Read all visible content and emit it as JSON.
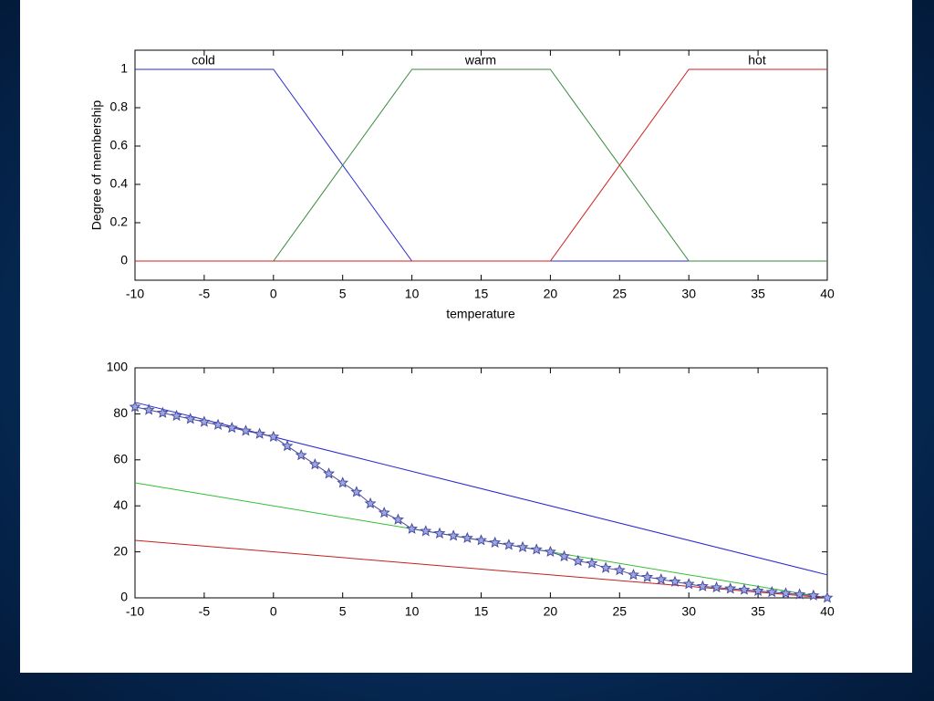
{
  "chart_data": [
    {
      "type": "line",
      "xlabel": "temperature",
      "ylabel": "Degree of membership",
      "xlim": [
        -10,
        40
      ],
      "ylim": [
        -0.1,
        1.1
      ],
      "xticks": [
        -10,
        -5,
        0,
        5,
        10,
        15,
        20,
        25,
        30,
        35,
        40
      ],
      "yticks": [
        0,
        0.2,
        0.4,
        0.6,
        0.8,
        1
      ],
      "series": [
        {
          "name": "cold",
          "color": "#2b2bd0",
          "x": [
            -10,
            0,
            10,
            40
          ],
          "values": [
            1,
            1,
            0,
            0
          ]
        },
        {
          "name": "warm",
          "color": "#3a8a3a",
          "x": [
            -10,
            0,
            10,
            20,
            30,
            40
          ],
          "values": [
            0,
            0,
            1,
            1,
            0,
            0
          ]
        },
        {
          "name": "hot",
          "color": "#d02020",
          "x": [
            -10,
            20,
            30,
            40
          ],
          "values": [
            0,
            0,
            1,
            1
          ]
        }
      ]
    },
    {
      "type": "line",
      "xlim": [
        -10,
        40
      ],
      "ylim": [
        0,
        100
      ],
      "xticks": [
        -10,
        -5,
        0,
        5,
        10,
        15,
        20,
        25,
        30,
        35,
        40
      ],
      "yticks": [
        0,
        20,
        40,
        60,
        80,
        100
      ],
      "series": [
        {
          "color": "#2b2bd0",
          "x": [
            -10,
            40
          ],
          "values": [
            85,
            10
          ]
        },
        {
          "color": "#30c030",
          "x": [
            -10,
            40
          ],
          "values": [
            50,
            0
          ]
        },
        {
          "color": "#c02020",
          "x": [
            -10,
            40
          ],
          "values": [
            25,
            0
          ]
        },
        {
          "color": "#4a4aa0",
          "marker": "star",
          "x": [
            -10,
            -9,
            -8,
            -7,
            -6,
            -5,
            -4,
            -3,
            -2,
            -1,
            0,
            1,
            2,
            3,
            4,
            5,
            6,
            7,
            8,
            9,
            10,
            11,
            12,
            13,
            14,
            15,
            16,
            17,
            18,
            19,
            20,
            21,
            22,
            23,
            24,
            25,
            26,
            27,
            28,
            29,
            30,
            31,
            32,
            33,
            34,
            35,
            36,
            37,
            38,
            39,
            40
          ],
          "values": [
            83,
            81.7,
            80.4,
            79.1,
            77.8,
            76.5,
            75.2,
            73.9,
            72.6,
            71.3,
            70,
            66,
            62,
            58,
            54,
            50,
            46,
            41,
            37,
            34,
            30,
            29,
            28,
            27,
            26,
            25,
            24,
            23,
            22,
            21,
            20,
            18,
            16,
            15,
            13,
            12,
            10,
            9,
            8,
            7,
            6,
            5,
            4.5,
            4,
            3.5,
            3,
            2.5,
            2,
            1.5,
            1,
            0
          ]
        }
      ]
    }
  ]
}
